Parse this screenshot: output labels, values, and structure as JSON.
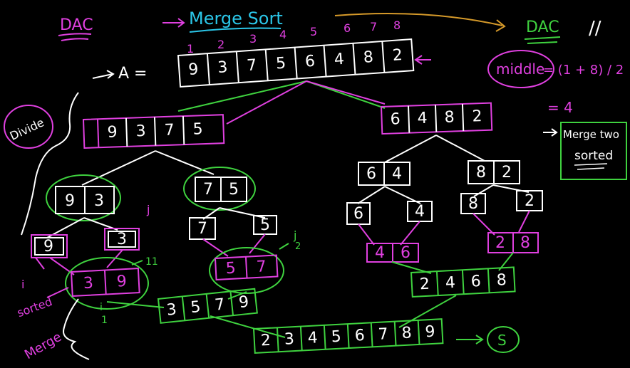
{
  "labels": {
    "dac_left": "DAC",
    "title": "Merge Sort",
    "dac_right": "DAC",
    "pause_mark": "//",
    "array_name": "A =",
    "divide": "Divide",
    "merge": "Merge",
    "sorted_left": "sorted",
    "middle_label": "middle",
    "middle_formula": "= (1 + 8) / 2",
    "middle_value": "= 4",
    "merge_two_line1": "Merge two",
    "merge_two_line2": "sorted",
    "i_mark": "i",
    "j_mark": "j",
    "j_mark2": "j",
    "i_mark2": "i",
    "one_mark": "1",
    "two_mark": "2",
    "eleven_mark": "11",
    "result_circle": "S"
  },
  "colors": {
    "white": "#ffffff",
    "magenta": "#e040e0",
    "green": "#3fd23f",
    "cyan": "#2bc6e8",
    "orange": "#d69a2a",
    "background": "#000000"
  },
  "indices": [
    "1",
    "2",
    "3",
    "4",
    "5",
    "6",
    "7",
    "8"
  ],
  "array_A": [
    "9",
    "3",
    "7",
    "5",
    "6",
    "4",
    "8",
    "2"
  ],
  "left_half": [
    "9",
    "3",
    "7",
    "5"
  ],
  "right_half": [
    "6",
    "4",
    "8",
    "2"
  ],
  "level2": {
    "ll": [
      "9",
      "3"
    ],
    "lr": [
      "7",
      "5"
    ],
    "rl": [
      "6",
      "4"
    ],
    "rr": [
      "8",
      "2"
    ]
  },
  "level3": {
    "a": "9",
    "b": "3",
    "c": "7",
    "d": "5",
    "e": "6",
    "f": "4",
    "g": "8",
    "h": "2"
  },
  "merged2": {
    "m1": [
      "3",
      "9"
    ],
    "m2": [
      "5",
      "7"
    ],
    "m3": [
      "4",
      "6"
    ],
    "m4": [
      "2",
      "8"
    ]
  },
  "merged4": {
    "left": [
      "3",
      "5",
      "7",
      "9"
    ],
    "right": [
      "2",
      "4",
      "6",
      "8"
    ]
  },
  "final": [
    "2",
    "3",
    "4",
    "5",
    "6",
    "7",
    "8",
    "9"
  ]
}
